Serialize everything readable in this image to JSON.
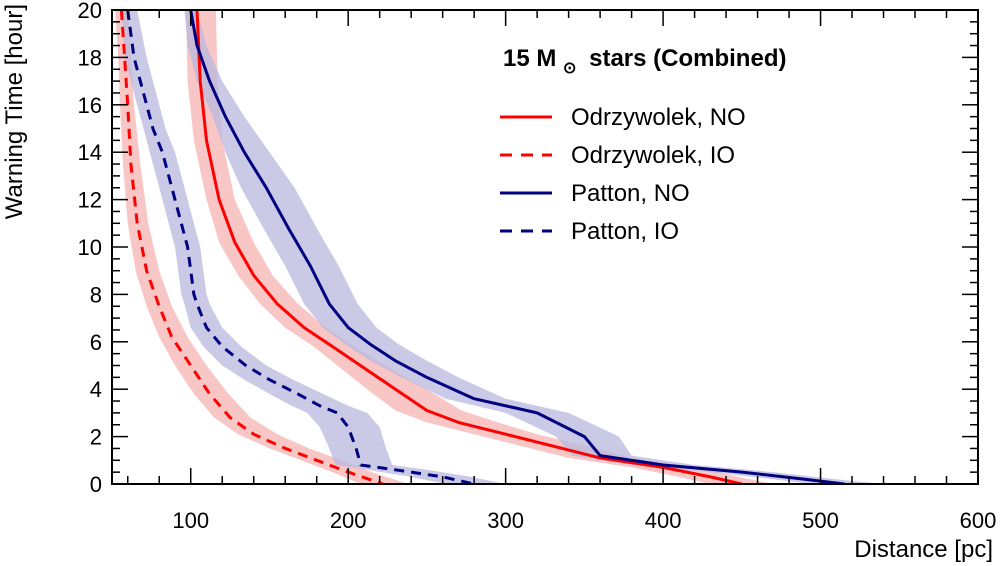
{
  "chart_data": {
    "type": "line",
    "title": "15 M stars (Combined)",
    "title_parts": {
      "prefix": "15 M",
      "subscript_symbol": "⊙",
      "suffix": "stars (Combined)"
    },
    "xlabel": "Distance [pc]",
    "ylabel": "Warning Time [hour]",
    "xlim": [
      50,
      600
    ],
    "ylim": [
      0,
      20
    ],
    "xticks": [
      100,
      200,
      300,
      400,
      500,
      600
    ],
    "yticks": [
      0,
      2,
      4,
      6,
      8,
      10,
      12,
      14,
      16,
      18,
      20
    ],
    "legend_position": "top-right",
    "series": [
      {
        "name": "Odrzywolek, NO",
        "color": "#ff0000",
        "band_color": "#f7b3b3",
        "dash": "solid",
        "points": [
          [
            104,
            20
          ],
          [
            106,
            17
          ],
          [
            110,
            14.5
          ],
          [
            118,
            12
          ],
          [
            128,
            10.2
          ],
          [
            140,
            8.8
          ],
          [
            155,
            7.6
          ],
          [
            172,
            6.6
          ],
          [
            190,
            5.8
          ],
          [
            210,
            4.9
          ],
          [
            230,
            4
          ],
          [
            250,
            3.1
          ],
          [
            270,
            2.6
          ],
          [
            300,
            2.1
          ],
          [
            330,
            1.6
          ],
          [
            360,
            1.1
          ],
          [
            400,
            0.7
          ],
          [
            430,
            0.3
          ],
          [
            450,
            0
          ]
        ],
        "band_lower": [
          [
            97,
            20
          ],
          [
            98,
            17
          ],
          [
            102,
            14.5
          ],
          [
            110,
            12
          ],
          [
            118,
            10.2
          ],
          [
            130,
            8.8
          ],
          [
            144,
            7.6
          ],
          [
            160,
            6.6
          ],
          [
            178,
            5.8
          ],
          [
            195,
            4.9
          ],
          [
            212,
            4
          ],
          [
            230,
            3.1
          ],
          [
            250,
            2.6
          ],
          [
            280,
            2.1
          ],
          [
            310,
            1.6
          ],
          [
            340,
            1.1
          ],
          [
            380,
            0.7
          ],
          [
            410,
            0.3
          ],
          [
            430,
            0
          ]
        ],
        "band_upper": [
          [
            116,
            20
          ],
          [
            117,
            17
          ],
          [
            120,
            14.5
          ],
          [
            128,
            12
          ],
          [
            140,
            10.2
          ],
          [
            152,
            8.8
          ],
          [
            168,
            7.6
          ],
          [
            186,
            6.6
          ],
          [
            204,
            5.8
          ],
          [
            226,
            4.9
          ],
          [
            250,
            4
          ],
          [
            272,
            3.1
          ],
          [
            295,
            2.6
          ],
          [
            320,
            2.1
          ],
          [
            352,
            1.6
          ],
          [
            380,
            1.1
          ],
          [
            420,
            0.7
          ],
          [
            448,
            0.3
          ],
          [
            470,
            0
          ]
        ]
      },
      {
        "name": "Odrzywolek, IO",
        "color": "#ff0000",
        "band_color": "#f7b3b3",
        "dash": "dashed",
        "points": [
          [
            56,
            20
          ],
          [
            58,
            18
          ],
          [
            60,
            16
          ],
          [
            62,
            13.5
          ],
          [
            66,
            11
          ],
          [
            72,
            9
          ],
          [
            80,
            7.5
          ],
          [
            88,
            6.2
          ],
          [
            100,
            5
          ],
          [
            112,
            3.8
          ],
          [
            125,
            2.8
          ],
          [
            140,
            2.1
          ],
          [
            160,
            1.5
          ],
          [
            180,
            1
          ],
          [
            200,
            0.5
          ],
          [
            222,
            0
          ]
        ],
        "band_lower": [
          [
            52,
            20
          ],
          [
            54,
            18
          ],
          [
            55,
            16
          ],
          [
            57,
            13.5
          ],
          [
            60,
            11
          ],
          [
            65,
            9
          ],
          [
            72,
            7.5
          ],
          [
            80,
            6.2
          ],
          [
            90,
            5
          ],
          [
            102,
            3.8
          ],
          [
            115,
            2.8
          ],
          [
            130,
            2.1
          ],
          [
            150,
            1.5
          ],
          [
            170,
            1
          ],
          [
            190,
            0.5
          ],
          [
            208,
            0
          ]
        ],
        "band_upper": [
          [
            60,
            20
          ],
          [
            62,
            18
          ],
          [
            64,
            16
          ],
          [
            68,
            13.5
          ],
          [
            73,
            11
          ],
          [
            80,
            9
          ],
          [
            88,
            7.5
          ],
          [
            98,
            6.2
          ],
          [
            110,
            5
          ],
          [
            124,
            3.8
          ],
          [
            138,
            2.8
          ],
          [
            155,
            2.1
          ],
          [
            175,
            1.5
          ],
          [
            196,
            1
          ],
          [
            215,
            0.5
          ],
          [
            238,
            0
          ]
        ]
      },
      {
        "name": "Patton, NO",
        "color": "#000080",
        "band_color": "#b8b8dd",
        "dash": "solid",
        "points": [
          [
            100,
            20
          ],
          [
            104,
            18.5
          ],
          [
            112,
            17
          ],
          [
            122,
            15.5
          ],
          [
            134,
            14
          ],
          [
            148,
            12.5
          ],
          [
            162,
            10.8
          ],
          [
            176,
            9.2
          ],
          [
            188,
            7.6
          ],
          [
            200,
            6.6
          ],
          [
            214,
            5.9
          ],
          [
            230,
            5.2
          ],
          [
            250,
            4.5
          ],
          [
            280,
            3.6
          ],
          [
            320,
            3
          ],
          [
            350,
            2
          ],
          [
            360,
            1.2
          ],
          [
            400,
            0.8
          ],
          [
            450,
            0.5
          ],
          [
            490,
            0.2
          ],
          [
            515,
            0
          ]
        ],
        "band_lower": [
          [
            96,
            20
          ],
          [
            98,
            18.5
          ],
          [
            104,
            17
          ],
          [
            114,
            15.5
          ],
          [
            122,
            14
          ],
          [
            132,
            12.5
          ],
          [
            146,
            10.8
          ],
          [
            160,
            9.2
          ],
          [
            172,
            7.6
          ],
          [
            184,
            6.6
          ],
          [
            198,
            5.9
          ],
          [
            214,
            5.2
          ],
          [
            234,
            4.5
          ],
          [
            262,
            3.6
          ],
          [
            300,
            3
          ],
          [
            332,
            2
          ],
          [
            342,
            1.2
          ],
          [
            380,
            0.8
          ],
          [
            430,
            0.5
          ],
          [
            470,
            0.2
          ],
          [
            495,
            0
          ]
        ],
        "band_upper": [
          [
            104,
            20
          ],
          [
            110,
            18.5
          ],
          [
            120,
            17
          ],
          [
            134,
            15.5
          ],
          [
            150,
            14
          ],
          [
            166,
            12.5
          ],
          [
            180,
            10.8
          ],
          [
            194,
            9.2
          ],
          [
            206,
            7.6
          ],
          [
            218,
            6.6
          ],
          [
            232,
            5.9
          ],
          [
            250,
            5.2
          ],
          [
            270,
            4.5
          ],
          [
            300,
            3.6
          ],
          [
            340,
            3
          ],
          [
            372,
            2
          ],
          [
            380,
            1.2
          ],
          [
            420,
            0.8
          ],
          [
            470,
            0.5
          ],
          [
            510,
            0.2
          ],
          [
            540,
            0
          ]
        ]
      },
      {
        "name": "Patton, IO",
        "color": "#000080",
        "band_color": "#b8b8dd",
        "dash": "dashed",
        "points": [
          [
            60,
            20
          ],
          [
            64,
            18
          ],
          [
            70,
            16.5
          ],
          [
            76,
            15
          ],
          [
            82,
            14
          ],
          [
            86,
            13
          ],
          [
            90,
            12
          ],
          [
            94,
            11
          ],
          [
            98,
            10
          ],
          [
            102,
            8
          ],
          [
            104,
            7.6
          ],
          [
            110,
            6.6
          ],
          [
            120,
            5.8
          ],
          [
            135,
            5
          ],
          [
            150,
            4.4
          ],
          [
            168,
            3.8
          ],
          [
            182,
            3.3
          ],
          [
            193,
            3
          ],
          [
            200,
            2.4
          ],
          [
            205,
            1.5
          ],
          [
            208,
            0.8
          ],
          [
            230,
            0.6
          ],
          [
            260,
            0.3
          ],
          [
            280,
            0
          ]
        ],
        "band_lower": [
          [
            56,
            20
          ],
          [
            58,
            18
          ],
          [
            64,
            16.5
          ],
          [
            70,
            15
          ],
          [
            74,
            14
          ],
          [
            78,
            13
          ],
          [
            82,
            12
          ],
          [
            86,
            11
          ],
          [
            90,
            10
          ],
          [
            94,
            8
          ],
          [
            96,
            7.6
          ],
          [
            100,
            6.6
          ],
          [
            108,
            5.8
          ],
          [
            120,
            5
          ],
          [
            134,
            4.4
          ],
          [
            150,
            3.8
          ],
          [
            164,
            3.3
          ],
          [
            174,
            3
          ],
          [
            182,
            2.4
          ],
          [
            188,
            1.5
          ],
          [
            192,
            0.8
          ],
          [
            212,
            0.6
          ],
          [
            240,
            0.3
          ],
          [
            262,
            0
          ]
        ],
        "band_upper": [
          [
            66,
            20
          ],
          [
            72,
            18
          ],
          [
            78,
            16.5
          ],
          [
            84,
            15
          ],
          [
            90,
            14
          ],
          [
            94,
            13
          ],
          [
            98,
            12
          ],
          [
            102,
            11
          ],
          [
            106,
            10
          ],
          [
            110,
            8
          ],
          [
            112,
            7.6
          ],
          [
            120,
            6.6
          ],
          [
            132,
            5.8
          ],
          [
            148,
            5
          ],
          [
            165,
            4.4
          ],
          [
            184,
            3.8
          ],
          [
            200,
            3.3
          ],
          [
            212,
            3
          ],
          [
            220,
            2.4
          ],
          [
            224,
            1.5
          ],
          [
            228,
            0.8
          ],
          [
            250,
            0.6
          ],
          [
            278,
            0.3
          ],
          [
            300,
            0
          ]
        ]
      }
    ]
  }
}
